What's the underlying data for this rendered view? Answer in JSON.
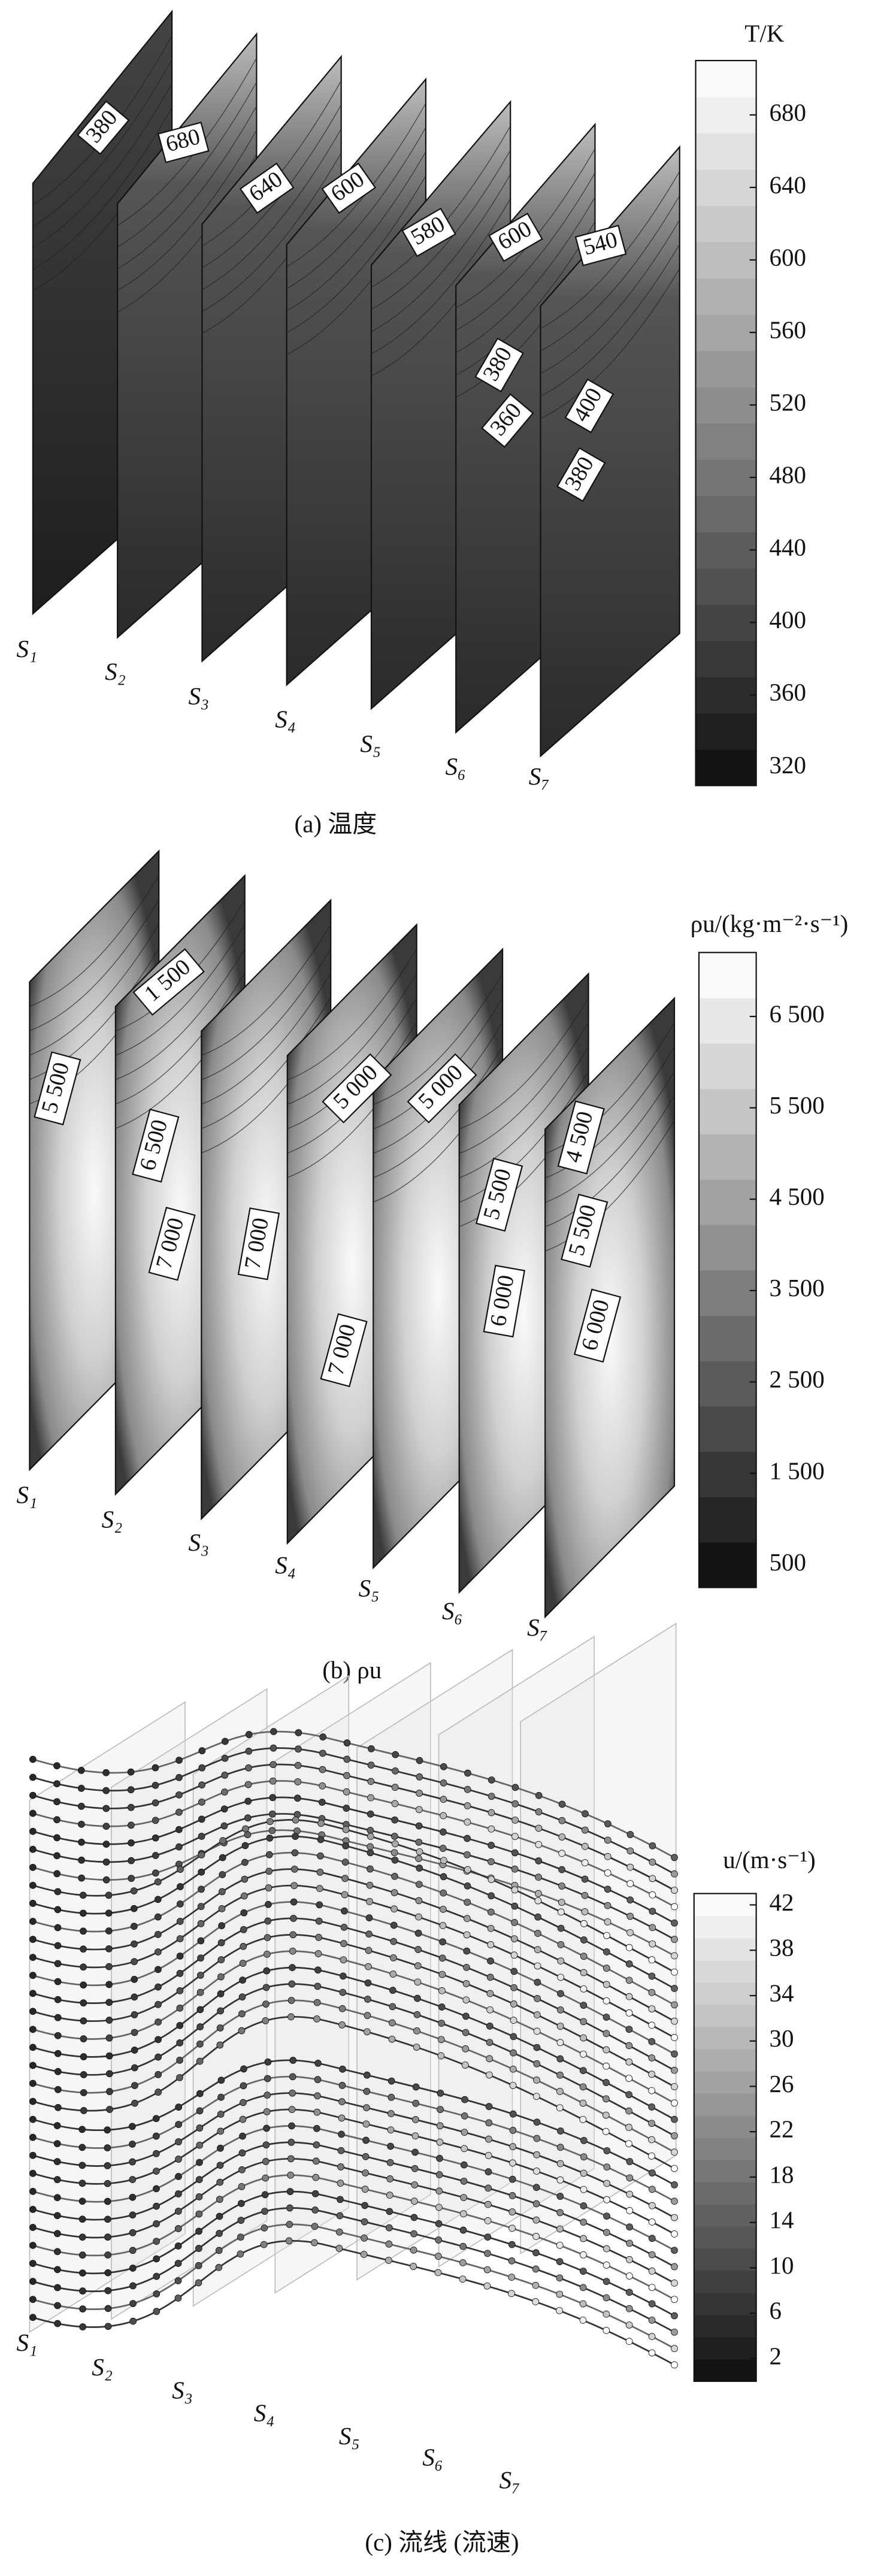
{
  "chart_data": [
    {
      "type": "contour",
      "colorbar_label": "T/K",
      "clim": [
        310,
        710
      ],
      "cticks": [
        320,
        360,
        400,
        440,
        480,
        520,
        560,
        600,
        640,
        680
      ],
      "contour_labels": [
        380,
        680,
        640,
        600,
        580,
        600,
        540,
        380,
        360,
        400,
        380
      ],
      "slice_labels": [
        "S₁",
        "S₂",
        "S₃",
        "S₄",
        "S₅",
        "S₆",
        "S₇"
      ],
      "caption": "(a) 温度"
    },
    {
      "type": "contour",
      "colorbar_label": "ρu/(kg·m⁻²·s⁻¹)",
      "clim": [
        250,
        7200
      ],
      "cticks": [
        {
          "value": 500,
          "label": "500"
        },
        {
          "value": 1500,
          "label": "1 500"
        },
        {
          "value": 2500,
          "label": "2 500"
        },
        {
          "value": 3500,
          "label": "3 500"
        },
        {
          "value": 4500,
          "label": "4 500"
        },
        {
          "value": 5500,
          "label": "5 500"
        },
        {
          "value": 6500,
          "label": "6 500"
        }
      ],
      "contour_labels": [
        {
          "value": 1500,
          "label": "1 500"
        },
        {
          "value": 5500,
          "label": "5 500"
        },
        {
          "value": 6500,
          "label": "6 500"
        },
        {
          "value": 7000,
          "label": "7 000"
        },
        {
          "value": 7000,
          "label": "7 000"
        },
        {
          "value": 5000,
          "label": "5 000"
        },
        {
          "value": 7000,
          "label": "7 000"
        },
        {
          "value": 5000,
          "label": "5 000"
        },
        {
          "value": 5500,
          "label": "5 500"
        },
        {
          "value": 6000,
          "label": "6 000"
        },
        {
          "value": 4500,
          "label": "4 500"
        },
        {
          "value": 5500,
          "label": "5 500"
        },
        {
          "value": 6000,
          "label": "6 000"
        }
      ],
      "slice_labels": [
        "S₁",
        "S₂",
        "S₃",
        "S₄",
        "S₅",
        "S₆",
        "S₇"
      ],
      "caption": "(b) ρu"
    },
    {
      "type": "streamline",
      "colorbar_label": "u/(m·s⁻¹)",
      "clim": [
        0,
        43
      ],
      "cticks": [
        2,
        6,
        10,
        14,
        18,
        22,
        26,
        30,
        34,
        38,
        42
      ],
      "slice_labels": [
        "S₁",
        "S₂",
        "S₃",
        "S₄",
        "S₅",
        "S₆",
        "S₇"
      ],
      "caption": "(c) 流线 (流速)"
    }
  ]
}
